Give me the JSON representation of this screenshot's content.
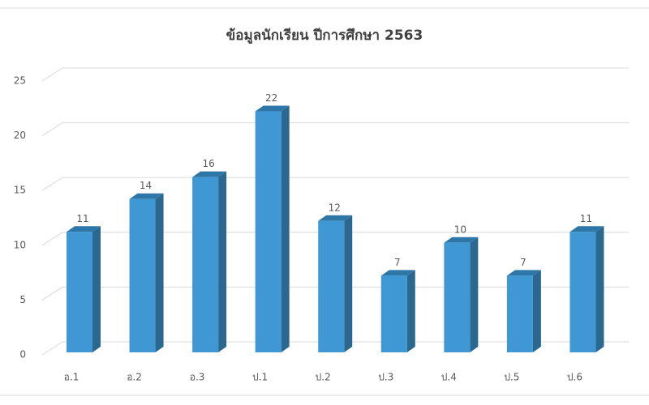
{
  "chart_data": {
    "type": "bar3d",
    "title": "ข้อมูลนักเรียน ปีการศึกษา 2563",
    "categories": [
      "อ.1",
      "อ.2",
      "อ.3",
      "ป.1",
      "ป.2",
      "ป.3",
      "ป.4",
      "ป.5",
      "ป.6"
    ],
    "values": [
      11,
      14,
      16,
      22,
      12,
      7,
      10,
      7,
      11
    ],
    "color": "#3f97d3",
    "ylim": [
      0,
      25
    ],
    "yticks": [
      0,
      5,
      10,
      15,
      20,
      25
    ],
    "grid": true
  }
}
